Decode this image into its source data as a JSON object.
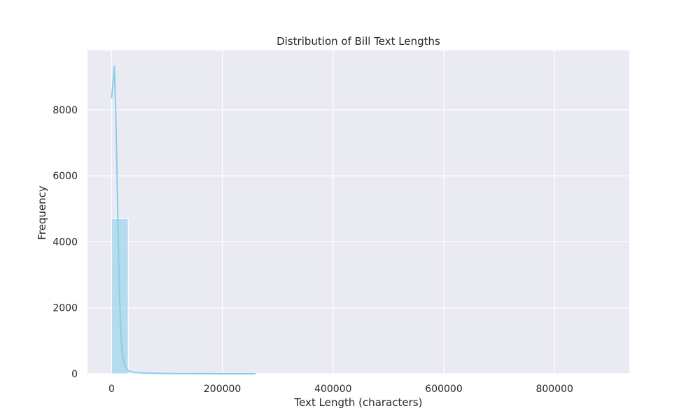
{
  "chart_data": {
    "type": "bar",
    "title": "Distribution of Bill Text Lengths",
    "xlabel": "Text Length (characters)",
    "ylabel": "Frequency",
    "xlim": [
      -43500,
      935000
    ],
    "ylim": [
      0,
      9800
    ],
    "x_ticks": [
      0,
      200000,
      400000,
      600000,
      800000
    ],
    "x_tick_labels": [
      "0",
      "200000",
      "400000",
      "600000",
      "800000"
    ],
    "y_ticks": [
      0,
      2000,
      4000,
      6000,
      8000
    ],
    "y_tick_labels": [
      "0",
      "2000",
      "4000",
      "6000",
      "8000"
    ],
    "grid": true,
    "bin_edges": [
      0,
      30000,
      60000,
      90000,
      120000,
      150000,
      180000,
      210000,
      240000,
      270000,
      300000,
      330000,
      360000,
      390000,
      420000,
      450000,
      480000,
      510000,
      540000,
      570000,
      600000,
      630000,
      660000,
      690000,
      720000,
      750000,
      780000,
      810000,
      840000,
      870000,
      900000
    ],
    "values": [
      4700,
      25,
      8,
      5,
      3,
      2,
      1,
      1,
      1,
      0,
      0,
      0,
      0,
      0,
      0,
      0,
      0,
      0,
      0,
      0,
      0,
      0,
      0,
      0,
      0,
      0,
      0,
      0,
      0,
      1
    ],
    "kde": {
      "x": [
        0,
        2000,
        5000,
        8000,
        11000,
        14000,
        17000,
        20000,
        25000,
        30000,
        40000,
        50000,
        70000,
        100000,
        140000,
        200000,
        260000
      ],
      "y": [
        8350,
        8700,
        9320,
        7600,
        5000,
        2500,
        1150,
        500,
        190,
        90,
        45,
        30,
        18,
        8,
        4,
        1,
        0
      ]
    },
    "colors": {
      "plot_background": "#eaeaf2",
      "grid": "#ffffff",
      "bar_fill": "#87ceeb",
      "bar_edge": "#ffffff",
      "kde_line": "#87ceeb"
    }
  }
}
